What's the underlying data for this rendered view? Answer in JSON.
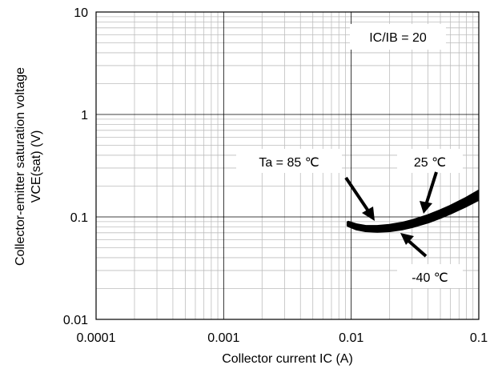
{
  "chart_data": {
    "type": "line",
    "title": "",
    "xlabel": "Collector current IC (A)",
    "ylabel_line1": "Collector-emitter saturation voltage",
    "ylabel_line2": "VCE(sat) (V)",
    "xscale": "log",
    "yscale": "log",
    "xlim": [
      0.0001,
      0.1
    ],
    "ylim": [
      0.01,
      10
    ],
    "grid": true,
    "x_tick_labels": [
      "0.0001",
      "0.001",
      "0.01",
      "0.1"
    ],
    "y_tick_labels": [
      "0.01",
      "0.1",
      "1",
      "10"
    ],
    "condition": "IC/IB = 20",
    "series": [
      {
        "name": "Ta = 85 ℃",
        "x": [
          0.0095,
          0.011,
          0.013,
          0.016,
          0.02,
          0.025,
          0.03,
          0.04,
          0.05,
          0.06,
          0.08,
          0.1
        ],
        "y": [
          0.083,
          0.077,
          0.074,
          0.073,
          0.074,
          0.077,
          0.081,
          0.09,
          0.1,
          0.11,
          0.13,
          0.15
        ]
      },
      {
        "name": "25 ℃",
        "x": [
          0.0095,
          0.011,
          0.013,
          0.016,
          0.02,
          0.025,
          0.03,
          0.04,
          0.05,
          0.06,
          0.08,
          0.1
        ],
        "y": [
          0.085,
          0.08,
          0.077,
          0.076,
          0.078,
          0.081,
          0.086,
          0.096,
          0.107,
          0.118,
          0.14,
          0.163
        ]
      },
      {
        "name": "-40 ℃",
        "x": [
          0.0095,
          0.011,
          0.013,
          0.016,
          0.02,
          0.025,
          0.03,
          0.04,
          0.05,
          0.06,
          0.08,
          0.1
        ],
        "y": [
          0.088,
          0.083,
          0.08,
          0.08,
          0.082,
          0.086,
          0.091,
          0.102,
          0.114,
          0.126,
          0.151,
          0.177
        ]
      }
    ],
    "annotations": [
      {
        "text": "Ta = 85 ℃",
        "points_to": "Ta = 85 ℃"
      },
      {
        "text": "25 ℃",
        "points_to": "25 ℃"
      },
      {
        "text": "-40 ℃",
        "points_to": "-40 ℃"
      }
    ]
  }
}
